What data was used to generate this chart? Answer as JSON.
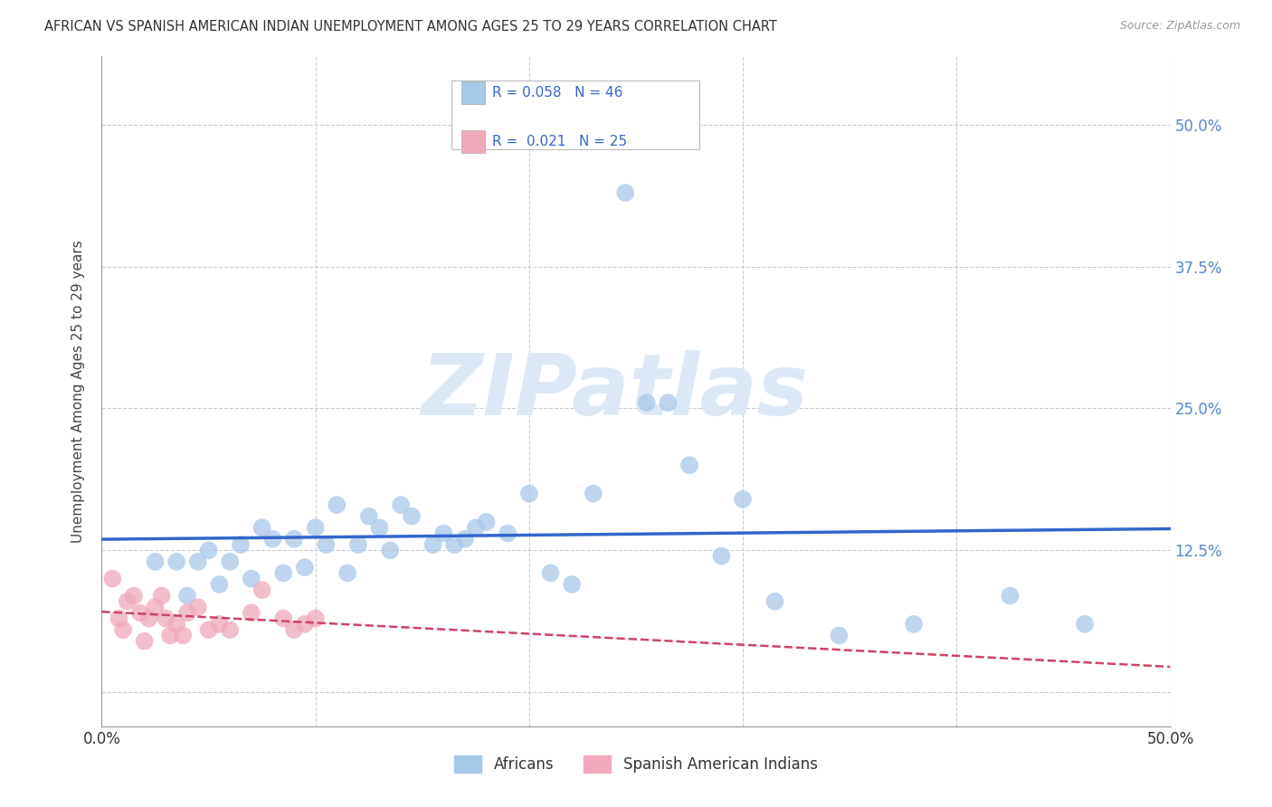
{
  "title": "AFRICAN VS SPANISH AMERICAN INDIAN UNEMPLOYMENT AMONG AGES 25 TO 29 YEARS CORRELATION CHART",
  "source": "Source: ZipAtlas.com",
  "ylabel": "Unemployment Among Ages 25 to 29 years",
  "xlim": [
    0.0,
    0.5
  ],
  "ylim": [
    -0.03,
    0.56
  ],
  "x_ticks": [
    0.0,
    0.1,
    0.2,
    0.3,
    0.4,
    0.5
  ],
  "y_ticks": [
    0.0,
    0.125,
    0.25,
    0.375,
    0.5
  ],
  "y_tick_labels_right": [
    "",
    "12.5%",
    "25.0%",
    "37.5%",
    "50.0%"
  ],
  "grid_color": "#cccccc",
  "background_color": "#ffffff",
  "africans_color": "#a8c8e8",
  "spanish_color": "#f0a8bc",
  "trend_african_color": "#3366cc",
  "trend_spanish_color": "#cc4466",
  "watermark_text": "ZIPatlas",
  "watermark_color": "#dce8f5",
  "africans_x": [
    0.025,
    0.035,
    0.04,
    0.045,
    0.05,
    0.055,
    0.06,
    0.065,
    0.07,
    0.075,
    0.08,
    0.085,
    0.09,
    0.095,
    0.1,
    0.105,
    0.11,
    0.115,
    0.12,
    0.125,
    0.13,
    0.135,
    0.14,
    0.145,
    0.155,
    0.16,
    0.165,
    0.17,
    0.175,
    0.18,
    0.19,
    0.2,
    0.21,
    0.22,
    0.23,
    0.245,
    0.255,
    0.265,
    0.275,
    0.29,
    0.3,
    0.315,
    0.345,
    0.38,
    0.425,
    0.46
  ],
  "africans_y": [
    0.115,
    0.115,
    0.085,
    0.115,
    0.125,
    0.095,
    0.115,
    0.13,
    0.1,
    0.145,
    0.135,
    0.105,
    0.135,
    0.11,
    0.145,
    0.13,
    0.165,
    0.105,
    0.13,
    0.155,
    0.145,
    0.125,
    0.165,
    0.155,
    0.13,
    0.14,
    0.13,
    0.135,
    0.145,
    0.15,
    0.14,
    0.175,
    0.105,
    0.095,
    0.175,
    0.44,
    0.255,
    0.255,
    0.2,
    0.12,
    0.17,
    0.08,
    0.05,
    0.06,
    0.085,
    0.06
  ],
  "spanish_x": [
    0.005,
    0.008,
    0.01,
    0.012,
    0.015,
    0.018,
    0.02,
    0.022,
    0.025,
    0.028,
    0.03,
    0.032,
    0.035,
    0.038,
    0.04,
    0.045,
    0.05,
    0.055,
    0.06,
    0.07,
    0.075,
    0.085,
    0.09,
    0.095,
    0.1
  ],
  "spanish_y": [
    0.1,
    0.065,
    0.055,
    0.08,
    0.085,
    0.07,
    0.045,
    0.065,
    0.075,
    0.085,
    0.065,
    0.05,
    0.06,
    0.05,
    0.07,
    0.075,
    0.055,
    0.06,
    0.055,
    0.07,
    0.09,
    0.065,
    0.055,
    0.06,
    0.065
  ],
  "legend_text_african": "R = 0.058   N = 46",
  "legend_text_spanish": "R =  0.021   N = 25"
}
